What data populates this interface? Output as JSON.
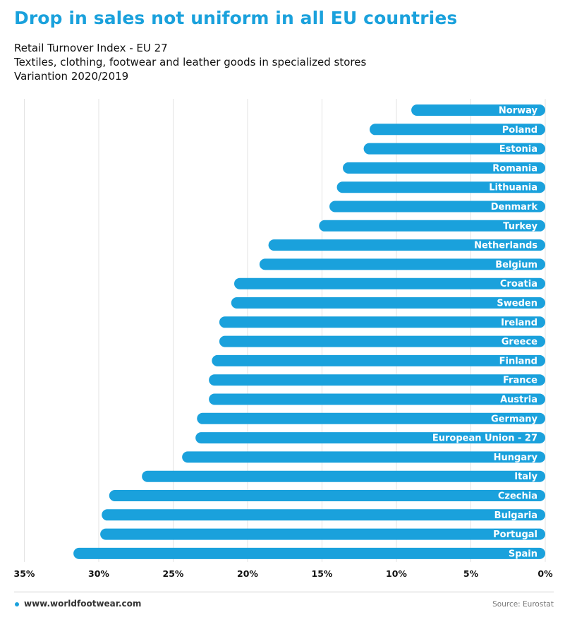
{
  "title": "Drop in sales not uniform in all EU countries",
  "subtitles": [
    "Retail Turnover Index - EU 27",
    "Textiles, clothing, footwear and leather goods in specialized stores",
    "Variantion 2020/2019"
  ],
  "footer": {
    "site": "www.worldfootwear.com",
    "source": "Source: Eurostat"
  },
  "colors": {
    "accent": "#1aa1dc",
    "bar": "#1aa1dc",
    "bar_label": "#ffffff"
  },
  "chart_data": {
    "type": "bar",
    "orientation": "horizontal",
    "categories": [
      "Norway",
      "Poland",
      "Estonia",
      "Romania",
      "Lithuania",
      "Denmark",
      "Turkey",
      "Netherlands",
      "Belgium",
      "Croatia",
      "Sweden",
      "Ireland",
      "Greece",
      "Finland",
      "France",
      "Austria",
      "Germany",
      "European Union - 27",
      "Hungary",
      "Italy",
      "Czechia",
      "Bulgaria",
      "Portugal",
      "Spain"
    ],
    "values": [
      -9.0,
      -11.8,
      -12.2,
      -13.6,
      -14.0,
      -14.5,
      -15.2,
      -18.6,
      -19.2,
      -20.9,
      -21.1,
      -21.9,
      -21.9,
      -22.4,
      -22.6,
      -22.6,
      -23.4,
      -23.5,
      -24.4,
      -27.1,
      -29.3,
      -29.8,
      -29.9,
      -31.7
    ],
    "xlim": [
      -35,
      0
    ],
    "xticks": [
      -35,
      -30,
      -25,
      -20,
      -15,
      -10,
      -5,
      0
    ],
    "xtick_labels": [
      "35%",
      "30%",
      "25%",
      "20%",
      "15%",
      "10%",
      "5%",
      "0%"
    ],
    "grid": true,
    "legend": "none"
  }
}
